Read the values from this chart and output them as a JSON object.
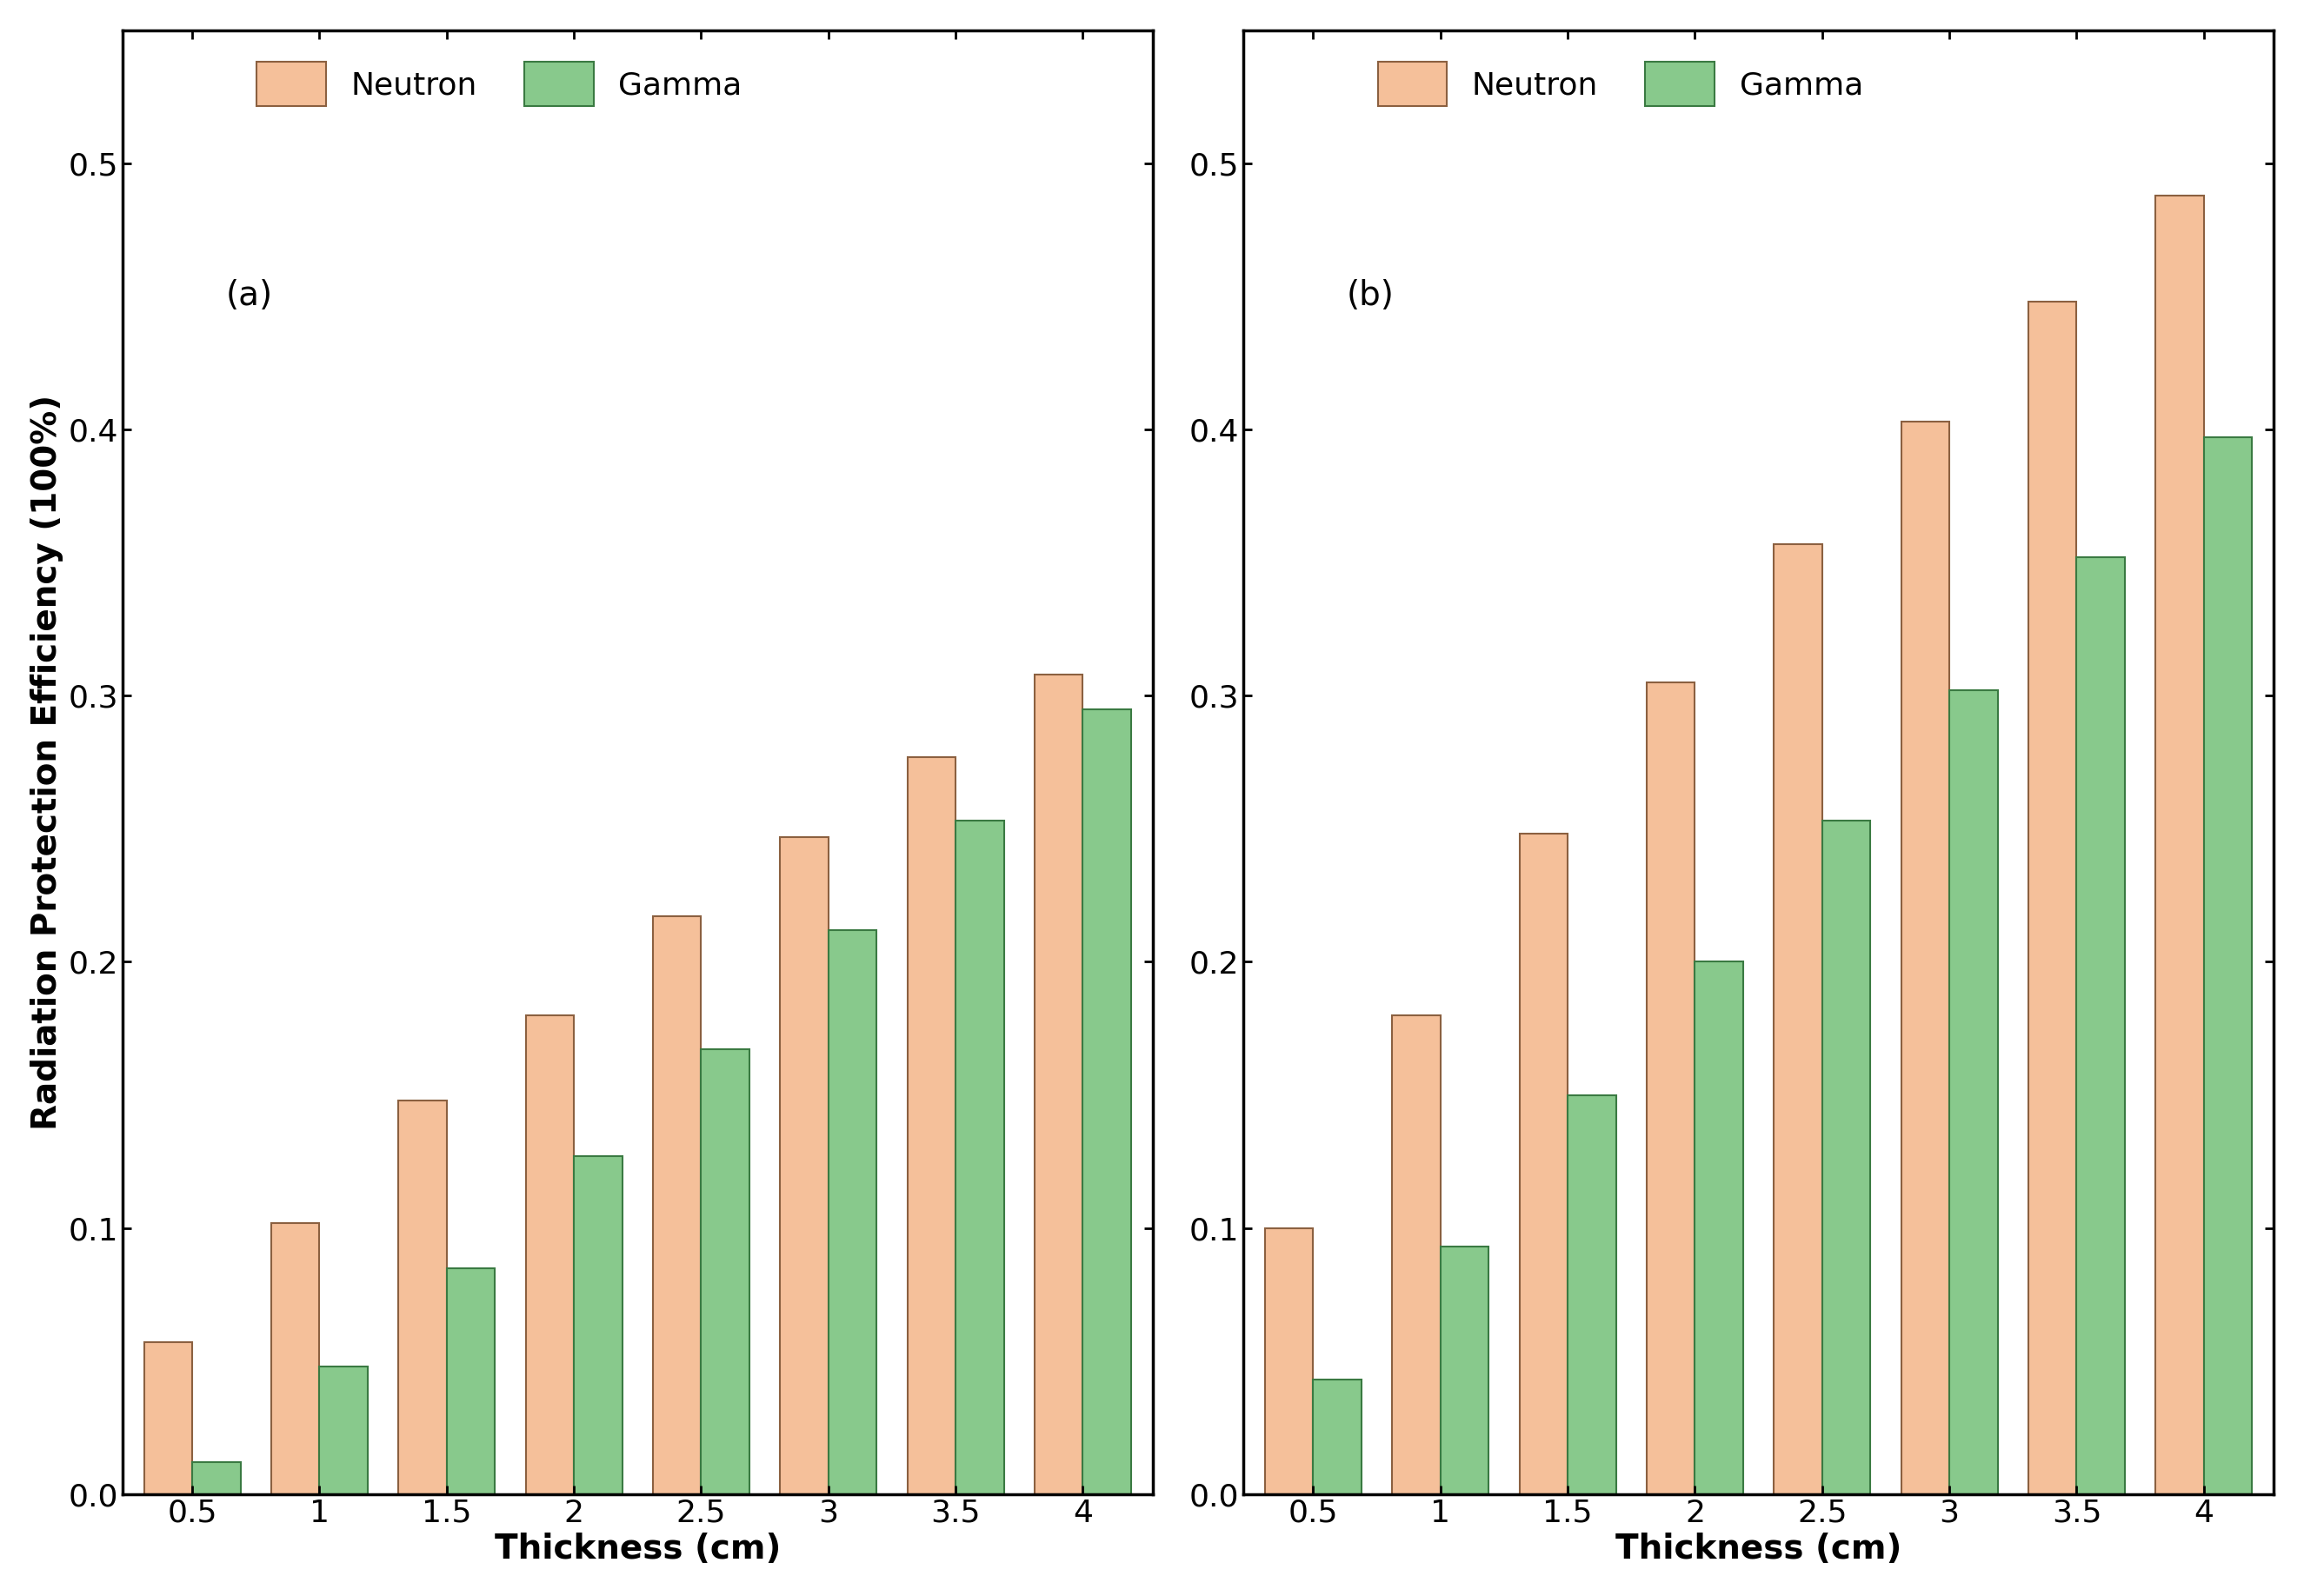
{
  "panel_a": {
    "label": "(a)",
    "neutron": [
      0.057,
      0.102,
      0.148,
      0.18,
      0.217,
      0.247,
      0.277,
      0.308
    ],
    "gamma": [
      0.012,
      0.048,
      0.085,
      0.127,
      0.167,
      0.212,
      0.253,
      0.295
    ]
  },
  "panel_b": {
    "label": "(b)",
    "neutron": [
      0.1,
      0.18,
      0.248,
      0.305,
      0.357,
      0.403,
      0.448,
      0.488
    ],
    "gamma": [
      0.043,
      0.093,
      0.15,
      0.2,
      0.253,
      0.302,
      0.352,
      0.397
    ]
  },
  "thicknesses": [
    0.5,
    1.0,
    1.5,
    2.0,
    2.5,
    3.0,
    3.5,
    4.0
  ],
  "xtick_labels": [
    "0.5",
    "1",
    "1.5",
    "2",
    "2.5",
    "3",
    "3.5",
    "4"
  ],
  "neutron_color": "#F5C09A",
  "gamma_color": "#88C98C",
  "neutron_edge": "#8B6040",
  "gamma_edge": "#3A7A42",
  "bar_width": 0.38,
  "xlabel": "Thickness (cm)",
  "ylabel": "Radiation Protection Efficiency (100%)",
  "ylim": [
    0.0,
    0.55
  ],
  "yticks": [
    0.0,
    0.1,
    0.2,
    0.3,
    0.4,
    0.5
  ],
  "legend_neutron": "Neutron",
  "legend_gamma": "Gamma",
  "tick_fontsize": 26,
  "label_fontsize": 28,
  "legend_fontsize": 26,
  "panel_label_fontsize": 28,
  "background_color": "#ffffff",
  "spine_linewidth": 2.5
}
